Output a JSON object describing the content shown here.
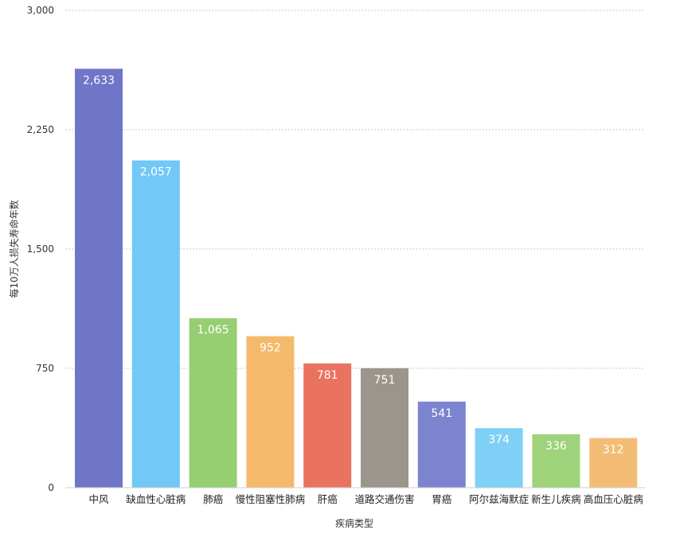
{
  "chart_data": {
    "type": "bar",
    "title": "",
    "xlabel": "疾病类型",
    "ylabel": "每10万人损失寿命年数",
    "ylim": [
      0,
      3000
    ],
    "yticks": [
      0,
      750,
      1500,
      2250,
      3000
    ],
    "ytick_labels": [
      "0",
      "750",
      "1,500",
      "2,250",
      "3,000"
    ],
    "grid": true,
    "categories": [
      "中风",
      "缺血性心脏病",
      "肺癌",
      "慢性阻塞性肺病",
      "肝癌",
      "道路交通伤害",
      "胃癌",
      "阿尔兹海默症",
      "新生儿疾病",
      "高血压心脏病"
    ],
    "values": [
      2633,
      2057,
      1065,
      952,
      781,
      751,
      541,
      374,
      336,
      312
    ],
    "value_labels": [
      "2,633",
      "2,057",
      "1,065",
      "952",
      "781",
      "751",
      "541",
      "374",
      "336",
      "312"
    ],
    "colors": [
      "#6f76c8",
      "#72c8f7",
      "#96cf72",
      "#f5b96c",
      "#e9735e",
      "#9b958c",
      "#7c84cf",
      "#7fd0f7",
      "#9ed27b",
      "#f3bd76"
    ]
  }
}
